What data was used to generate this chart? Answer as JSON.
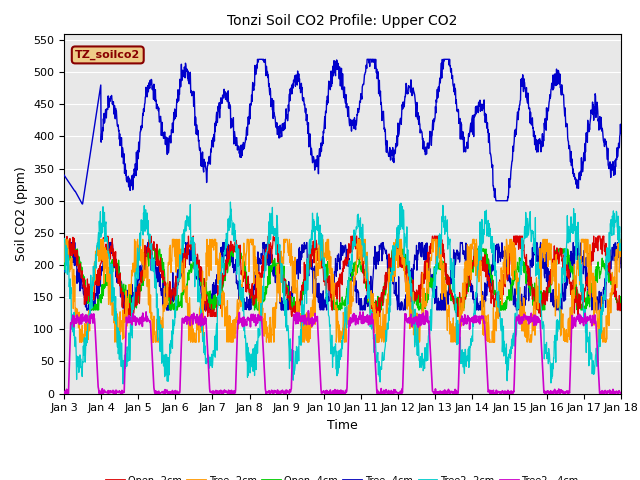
{
  "title": "Tonzi Soil CO2 Profile: Upper CO2",
  "xlabel": "Time",
  "ylabel": "Soil CO2 (ppm)",
  "ylim": [
    0,
    560
  ],
  "yticks": [
    0,
    50,
    100,
    150,
    200,
    250,
    300,
    350,
    400,
    450,
    500,
    550
  ],
  "legend_label": "TZ_soilco2",
  "legend_box_color": "#880000",
  "legend_box_bg": "#eecc88",
  "colors": {
    "TZ_soilco2": "#0000cc",
    "Open-2cm": "#dd0000",
    "Tree-2cm": "#ff9900",
    "Open-4cm": "#00cc00",
    "Tree-4cm": "#0000bb",
    "Tree2-2cm": "#00cccc",
    "Tree2-4cm": "#cc00cc"
  },
  "bg_color": "#e8e8e8",
  "grid_color": "#ffffff",
  "num_points": 1500,
  "xlim": [
    0,
    15
  ]
}
